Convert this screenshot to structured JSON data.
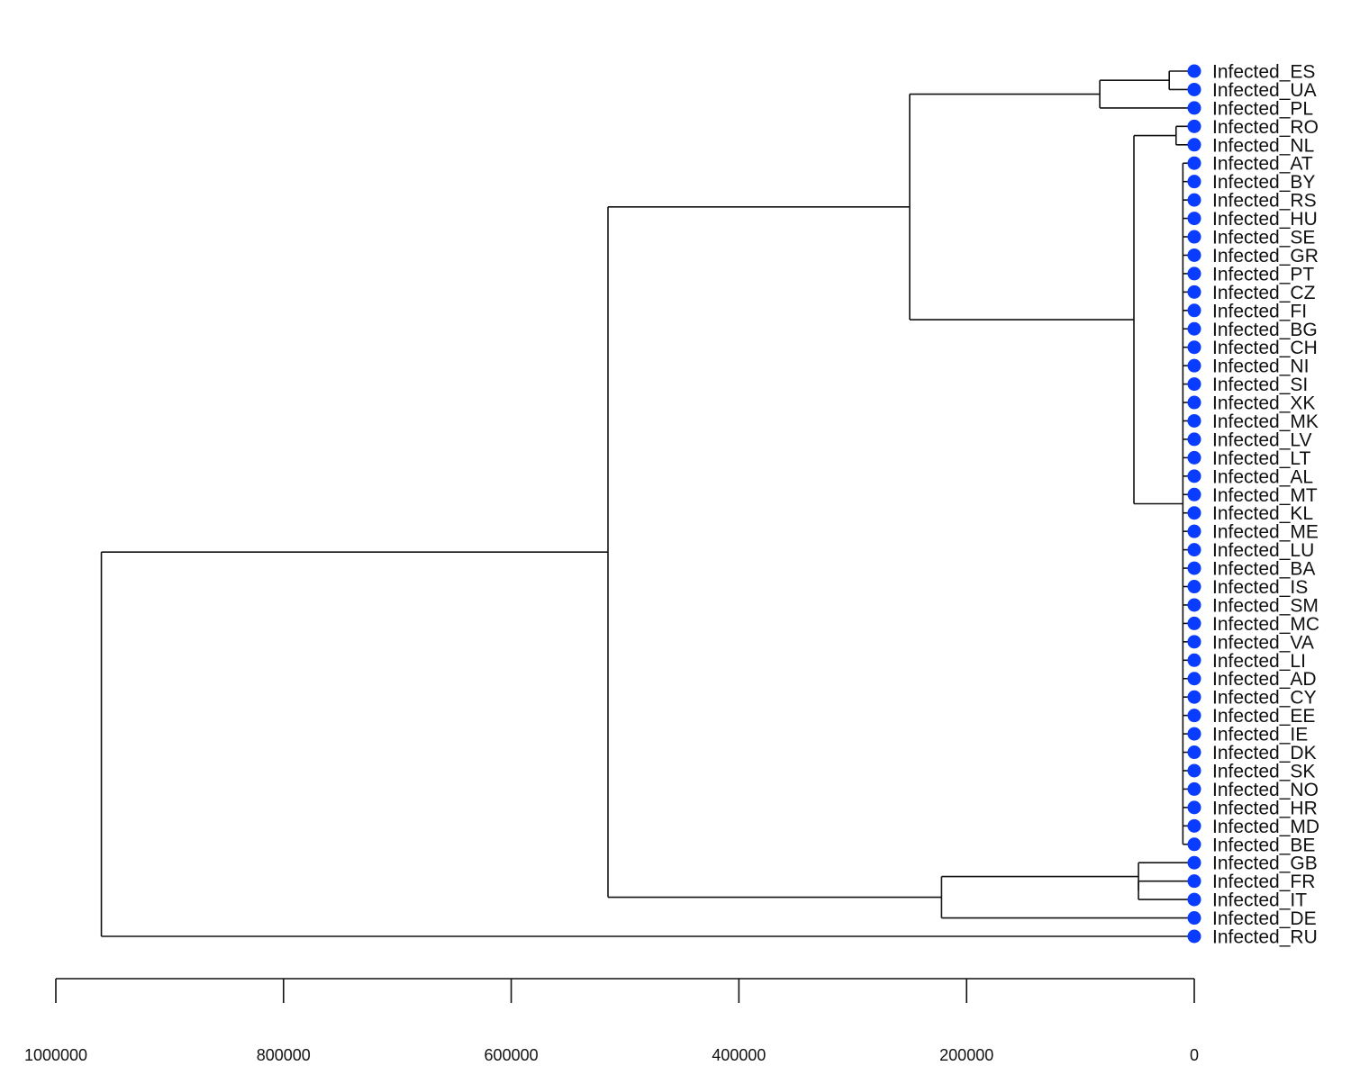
{
  "chart_data": {
    "type": "dendrogram",
    "orientation": "horizontal",
    "x_axis": {
      "range": [
        1000000,
        0
      ],
      "ticks": [
        1000000,
        800000,
        600000,
        400000,
        200000,
        0
      ],
      "tick_labels": [
        "1000000",
        "800000",
        "600000",
        "400000",
        "200000",
        "0"
      ]
    },
    "leaf_color": "#0a3cff",
    "leaves": [
      "Infected_ES",
      "Infected_UA",
      "Infected_PL",
      "Infected_RO",
      "Infected_NL",
      "Infected_AT",
      "Infected_BY",
      "Infected_RS",
      "Infected_HU",
      "Infected_SE",
      "Infected_GR",
      "Infected_PT",
      "Infected_CZ",
      "Infected_FI",
      "Infected_BG",
      "Infected_CH",
      "Infected_NI",
      "Infected_SI",
      "Infected_XK",
      "Infected_MK",
      "Infected_LV",
      "Infected_LT",
      "Infected_AL",
      "Infected_MT",
      "Infected_KL",
      "Infected_ME",
      "Infected_LU",
      "Infected_BA",
      "Infected_IS",
      "Infected_SM",
      "Infected_MC",
      "Infected_VA",
      "Infected_LI",
      "Infected_AD",
      "Infected_CY",
      "Infected_EE",
      "Infected_IE",
      "Infected_DK",
      "Infected_SK",
      "Infected_NO",
      "Infected_HR",
      "Infected_MD",
      "Infected_BE",
      "Infected_GB",
      "Infected_FR",
      "Infected_IT",
      "Infected_DE",
      "Infected_RU"
    ],
    "tree": {
      "h": 960000,
      "children": [
        {
          "h": 515000,
          "children": [
            {
              "h": 250000,
              "children": [
                {
                  "h": 83000,
                  "children": [
                    {
                      "h": 22000,
                      "children": [
                        "Infected_ES",
                        "Infected_UA"
                      ]
                    },
                    "Infected_PL"
                  ]
                },
                {
                  "h": 53000,
                  "children": [
                    {
                      "h": 16000,
                      "children": [
                        "Infected_RO",
                        "Infected_NL"
                      ]
                    },
                    {
                      "h": 10000,
                      "children": [
                        "Infected_AT",
                        "Infected_BY",
                        "Infected_RS",
                        "Infected_HU",
                        "Infected_SE",
                        "Infected_GR",
                        "Infected_PT",
                        "Infected_CZ",
                        "Infected_FI",
                        "Infected_BG",
                        "Infected_CH",
                        "Infected_NI",
                        "Infected_SI",
                        "Infected_XK",
                        "Infected_MK",
                        "Infected_LV",
                        "Infected_LT",
                        "Infected_AL",
                        "Infected_MT",
                        "Infected_KL",
                        "Infected_ME",
                        "Infected_LU",
                        "Infected_BA",
                        "Infected_IS",
                        "Infected_SM",
                        "Infected_MC",
                        "Infected_VA",
                        "Infected_LI",
                        "Infected_AD",
                        "Infected_CY",
                        "Infected_EE",
                        "Infected_IE",
                        "Infected_DK",
                        "Infected_SK",
                        "Infected_NO",
                        "Infected_HR",
                        "Infected_MD",
                        "Infected_BE"
                      ]
                    }
                  ]
                }
              ]
            },
            {
              "h": 222000,
              "children": [
                {
                  "h": 49000,
                  "children": [
                    "Infected_GB",
                    {
                      "h": 49000,
                      "children": [
                        "Infected_FR",
                        "Infected_IT"
                      ]
                    }
                  ]
                },
                "Infected_DE"
              ]
            }
          ]
        },
        "Infected_RU"
      ]
    }
  }
}
